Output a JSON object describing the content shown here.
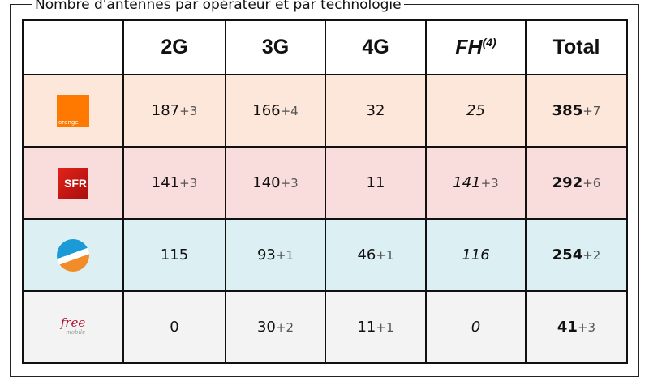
{
  "title": "Nombre d'antennes par opérateur et par technologie",
  "headers": {
    "c2g": "2G",
    "c3g": "3G",
    "c4g": "4G",
    "fh": "FH",
    "fh_note": "(4)",
    "total": "Total"
  },
  "colors": {
    "orange": "#fde6da",
    "sfr": "#f9dcdc",
    "bouygues": "#dcf0f4",
    "free": "#f3f3f3"
  },
  "rows": [
    {
      "operator": "Orange",
      "logo_text": "orange",
      "logo_icon": "orange-logo",
      "c2g": {
        "v": "187",
        "inc": "+3"
      },
      "c3g": {
        "v": "166",
        "inc": "+4"
      },
      "c4g": {
        "v": "32",
        "inc": ""
      },
      "fh": {
        "v": "25",
        "inc": ""
      },
      "total": {
        "v": "385",
        "inc": "+7"
      }
    },
    {
      "operator": "SFR",
      "logo_text": "SFR",
      "logo_icon": "sfr-logo",
      "c2g": {
        "v": "141",
        "inc": "+3"
      },
      "c3g": {
        "v": "140",
        "inc": "+3"
      },
      "c4g": {
        "v": "11",
        "inc": ""
      },
      "fh": {
        "v": "141",
        "inc": "+3"
      },
      "total": {
        "v": "292",
        "inc": "+6"
      }
    },
    {
      "operator": "Bouygues Telecom",
      "logo_icon": "bouygues-logo",
      "c2g": {
        "v": "115",
        "inc": ""
      },
      "c3g": {
        "v": "93",
        "inc": "+1"
      },
      "c4g": {
        "v": "46",
        "inc": "+1"
      },
      "fh": {
        "v": "116",
        "inc": ""
      },
      "total": {
        "v": "254",
        "inc": "+2"
      }
    },
    {
      "operator": "Free Mobile",
      "logo_text": "free",
      "logo_sub": "mobile",
      "logo_icon": "free-logo",
      "c2g": {
        "v": "0",
        "inc": ""
      },
      "c3g": {
        "v": "30",
        "inc": "+2"
      },
      "c4g": {
        "v": "11",
        "inc": "+1"
      },
      "fh": {
        "v": "0",
        "inc": ""
      },
      "total": {
        "v": "41",
        "inc": "+3"
      }
    }
  ]
}
